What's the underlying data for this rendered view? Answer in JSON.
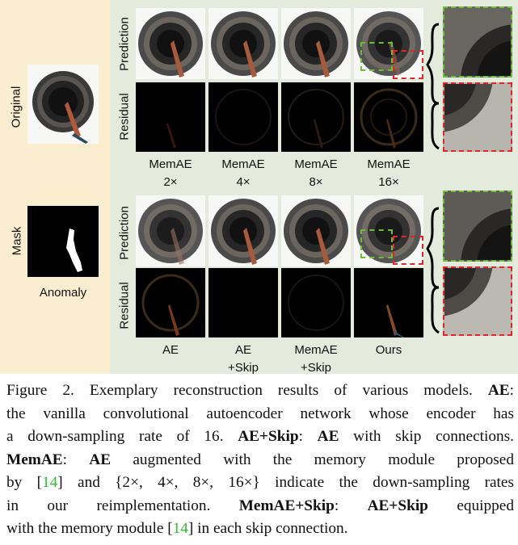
{
  "left": {
    "original_label": "Original",
    "mask_label": "Mask",
    "anomaly_label": "Anomaly"
  },
  "top_section": {
    "row_labels": [
      "Prediction",
      "Residual"
    ],
    "columns": [
      {
        "line1": "MemAE",
        "line2": "2×"
      },
      {
        "line1": "MemAE",
        "line2": "4×"
      },
      {
        "line1": "MemAE",
        "line2": "8×"
      },
      {
        "line1": "MemAE",
        "line2": "16×"
      }
    ]
  },
  "bottom_section": {
    "row_labels": [
      "Prediction",
      "Residual"
    ],
    "columns": [
      {
        "line1": "AE",
        "line2": ""
      },
      {
        "line1": "AE",
        "line2": "+Skip"
      },
      {
        "line1": "MemAE",
        "line2": "+Skip"
      },
      {
        "line1": "Ours",
        "line2": ""
      }
    ]
  },
  "caption": {
    "line1_a": "Figure 2. Exemplary reconstruction results of various models. ",
    "line1_b": "AE",
    "line1_c": ":",
    "line2": "the vanilla convolutional autoencoder network whose encoder has",
    "line3_a": "a down-sampling rate of 16. ",
    "line3_b": "AE+Skip",
    "line3_c": ": ",
    "line3_d": "AE",
    "line3_e": " with skip connections.",
    "line4_a": "MemAE",
    "line4_b": ": ",
    "line4_c": "AE",
    "line4_d": " augmented with the memory module proposed",
    "line5_a": "by [",
    "line5_cite": "14",
    "line5_b": "] and {2×, 4×, 8×, 16×} indicate the down-sampling rates",
    "line6_a": "in our reimplementation. ",
    "line6_b": "MemAE+Skip",
    "line6_c": ": ",
    "line6_d": "AE+Skip",
    "line6_e": " equipped",
    "line7_a": "with the memory module [",
    "line7_cite": "14",
    "line7_b": "] in each skip connection."
  },
  "colors": {
    "left_panel": "#fbeed0",
    "right_panel": "#e4ebdc",
    "crop_green": "#6bbf3a",
    "crop_red": "#e0262b",
    "cite": "#2fbf2f"
  }
}
